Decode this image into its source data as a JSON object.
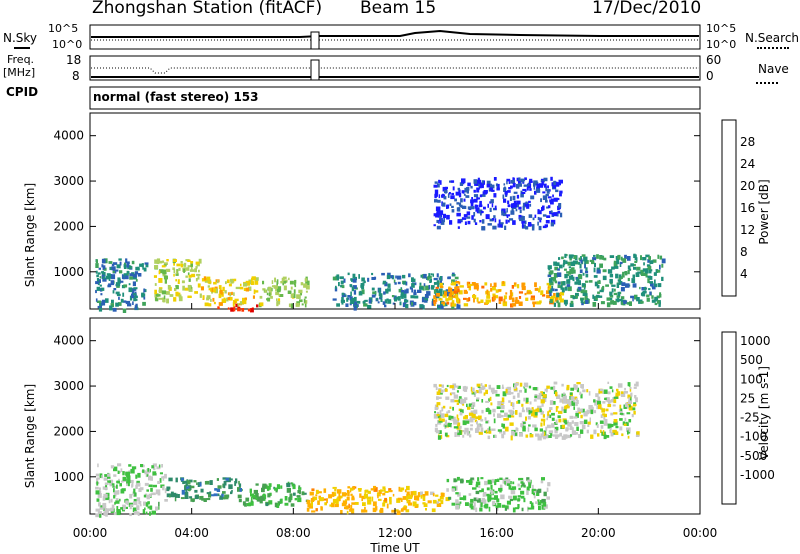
{
  "header": {
    "station": "Zhongshan Station (fitACF)",
    "beam": "Beam 15",
    "date": "17/Dec/2010"
  },
  "noise_panel": {
    "left_label": "N.Sky",
    "right_label": "N.Search",
    "left_ticks": [
      "10^5",
      "10^0"
    ],
    "right_ticks": [
      "10^5",
      "10^0"
    ]
  },
  "freq_panel": {
    "left_label_1": "Freq.",
    "left_label_2": "[MHz]",
    "right_label": "Nave",
    "left_ticks": [
      "18",
      "8"
    ],
    "right_ticks": [
      "60",
      "0"
    ]
  },
  "cpid": {
    "label": "CPID",
    "value": "normal (fast stereo) 153"
  },
  "chart_data": [
    {
      "type": "heatmap",
      "name": "power",
      "ylabel": "Slant Range [km]",
      "ylim": [
        180,
        4500
      ],
      "yticks": [
        "1000",
        "2000",
        "3000",
        "4000"
      ],
      "xlim": [
        0,
        24
      ],
      "colorbar": {
        "label": "Power [dB]",
        "ticks": [
          "4",
          "8",
          "12",
          "16",
          "20",
          "24",
          "28"
        ],
        "colors": [
          "#1a1aff",
          "#2b5fb5",
          "#1f8f7a",
          "#3fa35a",
          "#66b84a",
          "#b0d060",
          "#f0d000",
          "#ff9a00",
          "#ff6a00",
          "#ff3300",
          "#dd0000"
        ]
      },
      "regions": [
        {
          "x": [
            0.2,
            2.2
          ],
          "y": [
            180,
            1300
          ],
          "value": 9
        },
        {
          "x": [
            2.5,
            4.3
          ],
          "y": [
            400,
            1300
          ],
          "value": 16
        },
        {
          "x": [
            4.3,
            6.5
          ],
          "y": [
            300,
            900
          ],
          "value": 18
        },
        {
          "x": [
            5.0,
            6.6
          ],
          "y": [
            180,
            300
          ],
          "value": 26
        },
        {
          "x": [
            6.6,
            8.5
          ],
          "y": [
            300,
            900
          ],
          "value": 15
        },
        {
          "x": [
            9.5,
            14.5
          ],
          "y": [
            250,
            1000
          ],
          "value": 9
        },
        {
          "x": [
            13.5,
            18.5
          ],
          "y": [
            2000,
            3100
          ],
          "value": 6
        },
        {
          "x": [
            13.5,
            18.5
          ],
          "y": [
            300,
            800
          ],
          "value": 20
        },
        {
          "x": [
            18.0,
            22.5
          ],
          "y": [
            300,
            1400
          ],
          "value": 10
        }
      ]
    },
    {
      "type": "heatmap",
      "name": "velocity",
      "ylabel": "Slant Range [km]",
      "xlabel": "Time UT",
      "xticks": [
        "00:00",
        "04:00",
        "08:00",
        "12:00",
        "16:00",
        "20:00",
        "00:00"
      ],
      "xlim": [
        0,
        24
      ],
      "ylim": [
        180,
        4500
      ],
      "yticks": [
        "1000",
        "2000",
        "3000",
        "4000"
      ],
      "colorbar": {
        "label": "Velocity [m s-1]",
        "ticks": [
          "1000",
          "500",
          "100",
          "25",
          "-25",
          "-100",
          "-500",
          "-1000"
        ],
        "colors": [
          "#1a3fb0",
          "#2f6fc0",
          "#2e8a6a",
          "#46a050",
          "#3ec040",
          "#c8c8c8",
          "#f0d000",
          "#ffb000",
          "#ff8000",
          "#ff4000",
          "#dd0000"
        ]
      },
      "regions": [
        {
          "x": [
            0.2,
            3.0
          ],
          "y": [
            180,
            1300
          ],
          "value": 100
        },
        {
          "x": [
            3.0,
            6.0
          ],
          "y": [
            500,
            1000
          ],
          "value": 500
        },
        {
          "x": [
            6.0,
            8.5
          ],
          "y": [
            400,
            900
          ],
          "value": 300
        },
        {
          "x": [
            8.5,
            12.5
          ],
          "y": [
            250,
            800
          ],
          "value": -300
        },
        {
          "x": [
            12.5,
            14.0
          ],
          "y": [
            300,
            700
          ],
          "value": -250
        },
        {
          "x": [
            14.0,
            18.0
          ],
          "y": [
            300,
            1000
          ],
          "value": 150
        },
        {
          "x": [
            13.5,
            21.5
          ],
          "y": [
            1900,
            3100
          ],
          "value": 0
        }
      ]
    }
  ]
}
